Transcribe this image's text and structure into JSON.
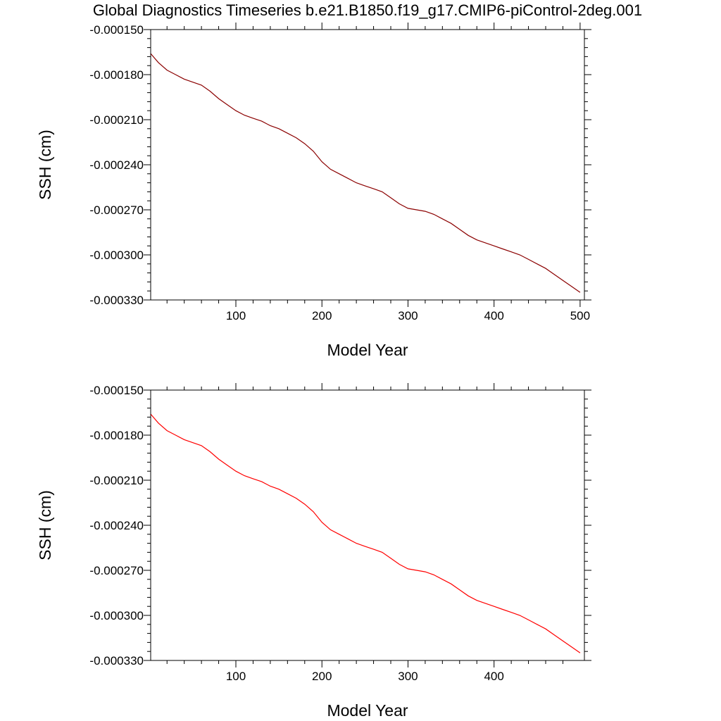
{
  "figure": {
    "title": "Global Diagnostics Timeseries b.e21.B1850.f19_g17.CMIP6-piControl-2deg.001"
  },
  "colors": {
    "background": "#ffffff",
    "axis": "#000000",
    "top_series": "#8b0000",
    "bottom_series": "#ff0000"
  },
  "chart_data": [
    {
      "type": "line",
      "title": "",
      "xlabel": "Model Year",
      "ylabel": "SSH (cm)",
      "xlim": [
        1,
        505
      ],
      "ylim": [
        -0.00033,
        -0.00015
      ],
      "xticks": [
        100,
        200,
        300,
        400,
        500
      ],
      "xtick_labels": [
        "100",
        "200",
        "300",
        "400",
        "500"
      ],
      "yticks": [
        -0.00015,
        -0.00018,
        -0.00021,
        -0.00024,
        -0.00027,
        -0.0003,
        -0.00033
      ],
      "ytick_labels": [
        "-0.000150",
        "-0.000180",
        "-0.000210",
        "-0.000240",
        "-0.000270",
        "-0.000300",
        "-0.000330"
      ],
      "grid": false,
      "series": [
        {
          "name": "SSH",
          "color": "#8b0000",
          "x": [
            1,
            10,
            20,
            30,
            40,
            50,
            60,
            70,
            80,
            90,
            100,
            110,
            120,
            130,
            140,
            150,
            160,
            170,
            180,
            190,
            200,
            210,
            220,
            230,
            240,
            250,
            260,
            270,
            280,
            290,
            300,
            310,
            320,
            330,
            340,
            350,
            360,
            370,
            380,
            390,
            400,
            410,
            420,
            430,
            440,
            450,
            460,
            470,
            480,
            490,
            500
          ],
          "y": [
            -0.000166,
            -0.000172,
            -0.000177,
            -0.00018,
            -0.000183,
            -0.000185,
            -0.000187,
            -0.000191,
            -0.000196,
            -0.0002,
            -0.000204,
            -0.000207,
            -0.000209,
            -0.000211,
            -0.000214,
            -0.000216,
            -0.000219,
            -0.000222,
            -0.000226,
            -0.000231,
            -0.000238,
            -0.000243,
            -0.000246,
            -0.000249,
            -0.000252,
            -0.000254,
            -0.000256,
            -0.000258,
            -0.000262,
            -0.000266,
            -0.000269,
            -0.00027,
            -0.000271,
            -0.000273,
            -0.000276,
            -0.000279,
            -0.000283,
            -0.000287,
            -0.00029,
            -0.000292,
            -0.000294,
            -0.000296,
            -0.000298,
            -0.0003,
            -0.000303,
            -0.000306,
            -0.000309,
            -0.000313,
            -0.000317,
            -0.000321,
            -0.000325
          ]
        }
      ]
    },
    {
      "type": "line",
      "title": "",
      "xlabel": "Model Year",
      "ylabel": "SSH (cm)",
      "xlim": [
        1,
        505
      ],
      "ylim": [
        -0.00033,
        -0.00015
      ],
      "xticks": [
        100,
        200,
        300,
        400
      ],
      "xtick_labels": [
        "100",
        "200",
        "300",
        "400"
      ],
      "yticks": [
        -0.00015,
        -0.00018,
        -0.00021,
        -0.00024,
        -0.00027,
        -0.0003,
        -0.00033
      ],
      "ytick_labels": [
        "-0.000150",
        "-0.000180",
        "-0.000210",
        "-0.000240",
        "-0.000270",
        "-0.000300",
        "-0.000330"
      ],
      "grid": false,
      "series": [
        {
          "name": "SSH",
          "color": "#ff0000",
          "x": [
            1,
            10,
            20,
            30,
            40,
            50,
            60,
            70,
            80,
            90,
            100,
            110,
            120,
            130,
            140,
            150,
            160,
            170,
            180,
            190,
            200,
            210,
            220,
            230,
            240,
            250,
            260,
            270,
            280,
            290,
            300,
            310,
            320,
            330,
            340,
            350,
            360,
            370,
            380,
            390,
            400,
            410,
            420,
            430,
            440,
            450,
            460,
            470,
            480,
            490,
            500
          ],
          "y": [
            -0.000166,
            -0.000172,
            -0.000177,
            -0.00018,
            -0.000183,
            -0.000185,
            -0.000187,
            -0.000191,
            -0.000196,
            -0.0002,
            -0.000204,
            -0.000207,
            -0.000209,
            -0.000211,
            -0.000214,
            -0.000216,
            -0.000219,
            -0.000222,
            -0.000226,
            -0.000231,
            -0.000238,
            -0.000243,
            -0.000246,
            -0.000249,
            -0.000252,
            -0.000254,
            -0.000256,
            -0.000258,
            -0.000262,
            -0.000266,
            -0.000269,
            -0.00027,
            -0.000271,
            -0.000273,
            -0.000276,
            -0.000279,
            -0.000283,
            -0.000287,
            -0.00029,
            -0.000292,
            -0.000294,
            -0.000296,
            -0.000298,
            -0.0003,
            -0.000303,
            -0.000306,
            -0.000309,
            -0.000313,
            -0.000317,
            -0.000321,
            -0.000325
          ]
        }
      ]
    }
  ]
}
